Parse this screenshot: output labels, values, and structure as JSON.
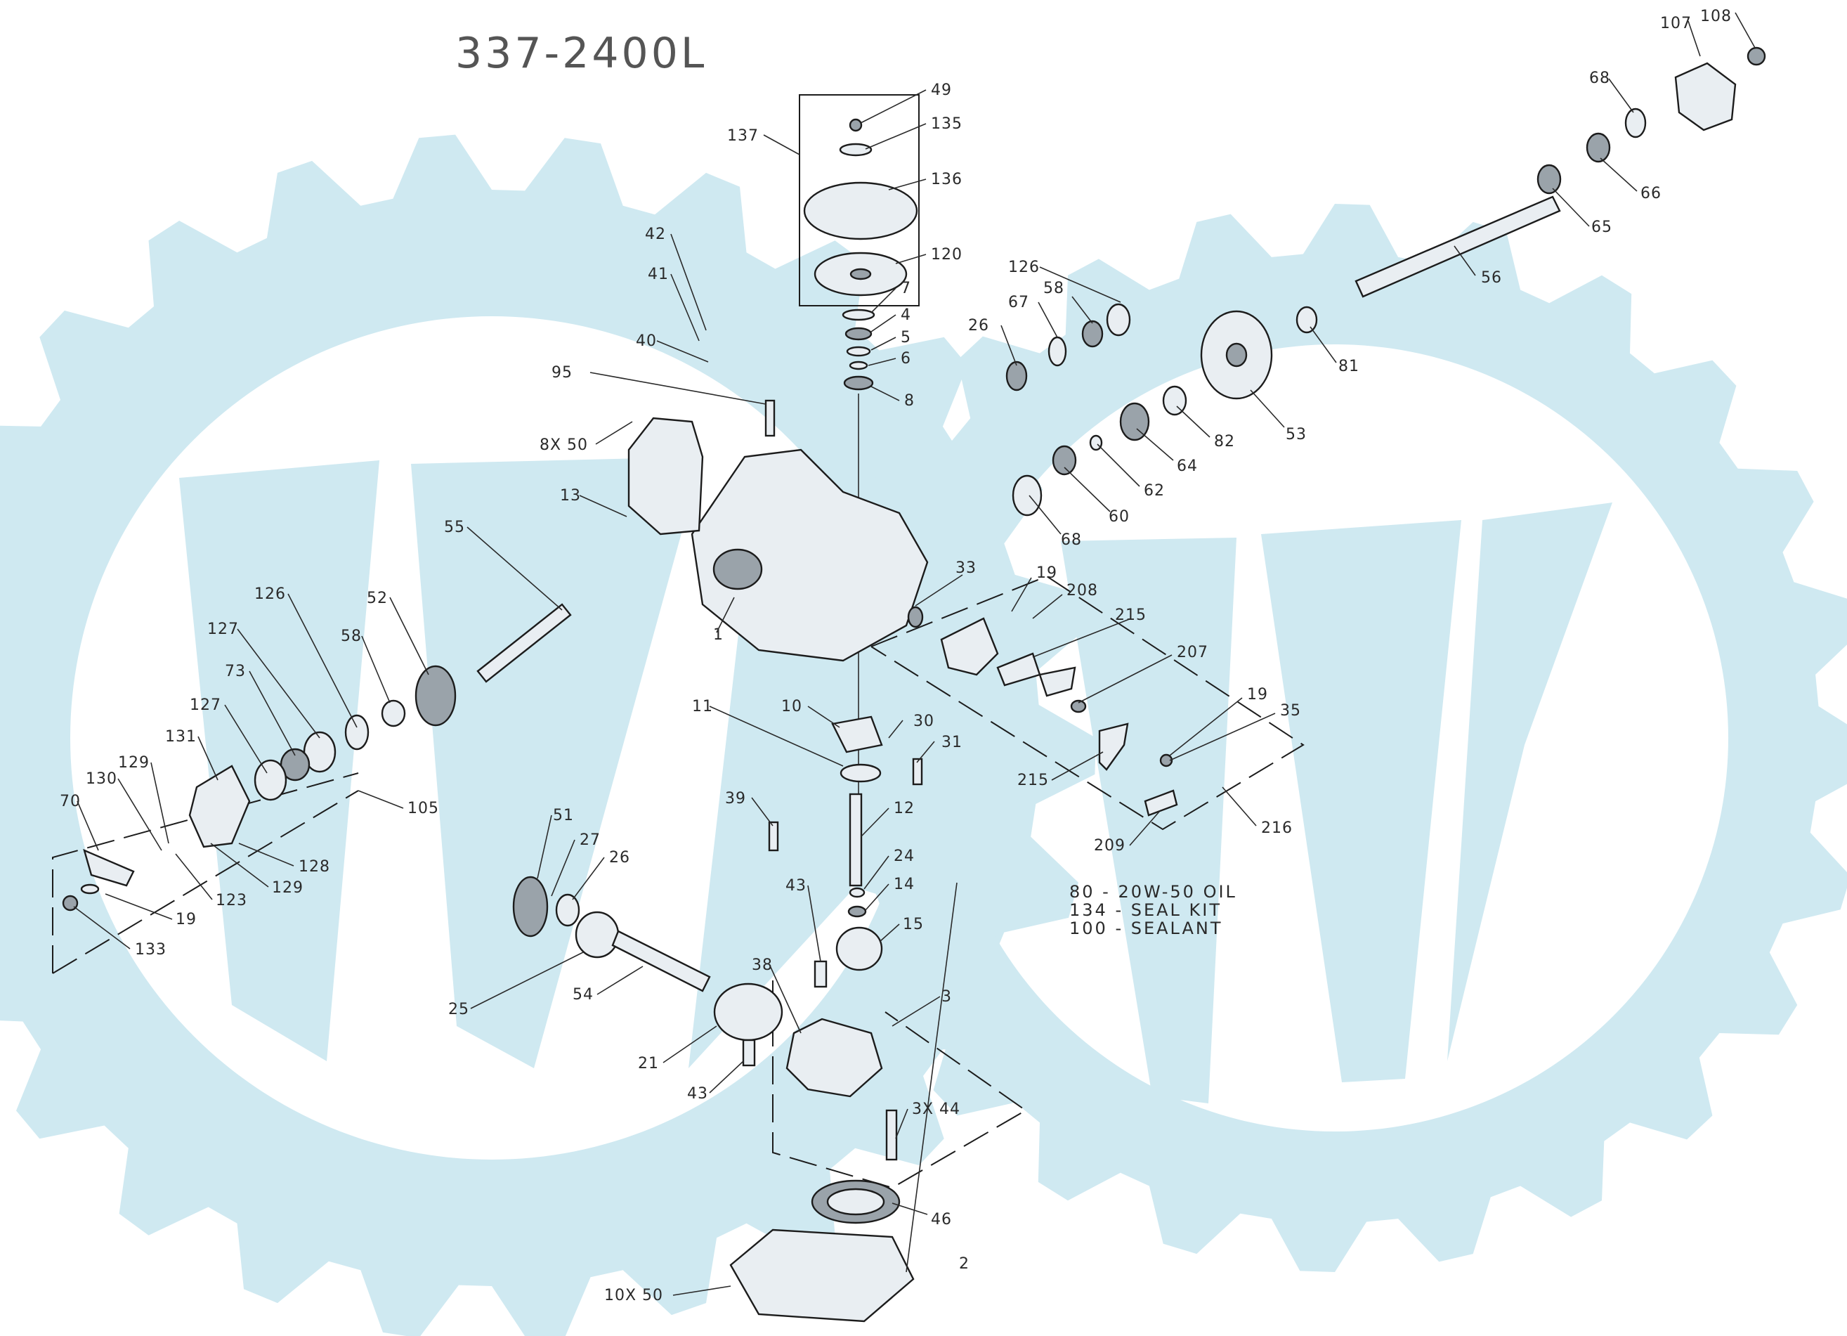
{
  "diagram": {
    "title": "337-2400L",
    "notes": [
      "80 - 20W-50 OIL",
      "134 - SEAL KIT",
      "100 - SEALANT"
    ],
    "watermark": {
      "color": "#cfe9f1",
      "shape": "gear-wheel-logo"
    },
    "callouts": [
      {
        "id": "c49",
        "text": "49"
      },
      {
        "id": "c135",
        "text": "135"
      },
      {
        "id": "c137",
        "text": "137"
      },
      {
        "id": "c136",
        "text": "136"
      },
      {
        "id": "c120",
        "text": "120"
      },
      {
        "id": "c7",
        "text": "7"
      },
      {
        "id": "c4",
        "text": "4"
      },
      {
        "id": "c5",
        "text": "5"
      },
      {
        "id": "c6",
        "text": "6"
      },
      {
        "id": "c8",
        "text": "8"
      },
      {
        "id": "c42",
        "text": "42"
      },
      {
        "id": "c41",
        "text": "41"
      },
      {
        "id": "c40",
        "text": "40"
      },
      {
        "id": "c95",
        "text": "95"
      },
      {
        "id": "c8x50",
        "text": "8X 50"
      },
      {
        "id": "c13",
        "text": "13"
      },
      {
        "id": "c55",
        "text": "55"
      },
      {
        "id": "c1",
        "text": "1"
      },
      {
        "id": "c126a",
        "text": "126"
      },
      {
        "id": "c52",
        "text": "52"
      },
      {
        "id": "c58a",
        "text": "58"
      },
      {
        "id": "c127a",
        "text": "127"
      },
      {
        "id": "c73",
        "text": "73"
      },
      {
        "id": "c127b",
        "text": "127"
      },
      {
        "id": "c131",
        "text": "131"
      },
      {
        "id": "c129a",
        "text": "129"
      },
      {
        "id": "c130",
        "text": "130"
      },
      {
        "id": "c70",
        "text": "70"
      },
      {
        "id": "c105",
        "text": "105"
      },
      {
        "id": "c128",
        "text": "128"
      },
      {
        "id": "c129b",
        "text": "129"
      },
      {
        "id": "c123",
        "text": "123"
      },
      {
        "id": "c19a",
        "text": "19"
      },
      {
        "id": "c133",
        "text": "133"
      },
      {
        "id": "c51",
        "text": "51"
      },
      {
        "id": "c27",
        "text": "27"
      },
      {
        "id": "c26a",
        "text": "26"
      },
      {
        "id": "c25",
        "text": "25"
      },
      {
        "id": "c54",
        "text": "54"
      },
      {
        "id": "c11",
        "text": "11"
      },
      {
        "id": "c10",
        "text": "10"
      },
      {
        "id": "c30",
        "text": "30"
      },
      {
        "id": "c31",
        "text": "31"
      },
      {
        "id": "c39",
        "text": "39"
      },
      {
        "id": "c12",
        "text": "12"
      },
      {
        "id": "c24",
        "text": "24"
      },
      {
        "id": "c14",
        "text": "14"
      },
      {
        "id": "c43a",
        "text": "43"
      },
      {
        "id": "c15",
        "text": "15"
      },
      {
        "id": "c38",
        "text": "38"
      },
      {
        "id": "c3",
        "text": "3"
      },
      {
        "id": "c21",
        "text": "21"
      },
      {
        "id": "c43b",
        "text": "43"
      },
      {
        "id": "c3x44",
        "text": "3X 44"
      },
      {
        "id": "c46",
        "text": "46"
      },
      {
        "id": "c2",
        "text": "2"
      },
      {
        "id": "c10x50",
        "text": "10X 50"
      },
      {
        "id": "c126b",
        "text": "126"
      },
      {
        "id": "c26b",
        "text": "26"
      },
      {
        "id": "c67",
        "text": "67"
      },
      {
        "id": "c58b",
        "text": "58"
      },
      {
        "id": "c33",
        "text": "33"
      },
      {
        "id": "c19b",
        "text": "19"
      },
      {
        "id": "c208",
        "text": "208"
      },
      {
        "id": "c215a",
        "text": "215"
      },
      {
        "id": "c207",
        "text": "207"
      },
      {
        "id": "c19c",
        "text": "19"
      },
      {
        "id": "c35",
        "text": "35"
      },
      {
        "id": "c215b",
        "text": "215"
      },
      {
        "id": "c209",
        "text": "209"
      },
      {
        "id": "c216",
        "text": "216"
      },
      {
        "id": "c68a",
        "text": "68"
      },
      {
        "id": "c60",
        "text": "60"
      },
      {
        "id": "c62",
        "text": "62"
      },
      {
        "id": "c64",
        "text": "64"
      },
      {
        "id": "c82",
        "text": "82"
      },
      {
        "id": "c53",
        "text": "53"
      },
      {
        "id": "c81",
        "text": "81"
      },
      {
        "id": "c56",
        "text": "56"
      },
      {
        "id": "c65",
        "text": "65"
      },
      {
        "id": "c66",
        "text": "66"
      },
      {
        "id": "c68b",
        "text": "68"
      },
      {
        "id": "c107",
        "text": "107"
      },
      {
        "id": "c108",
        "text": "108"
      }
    ]
  }
}
